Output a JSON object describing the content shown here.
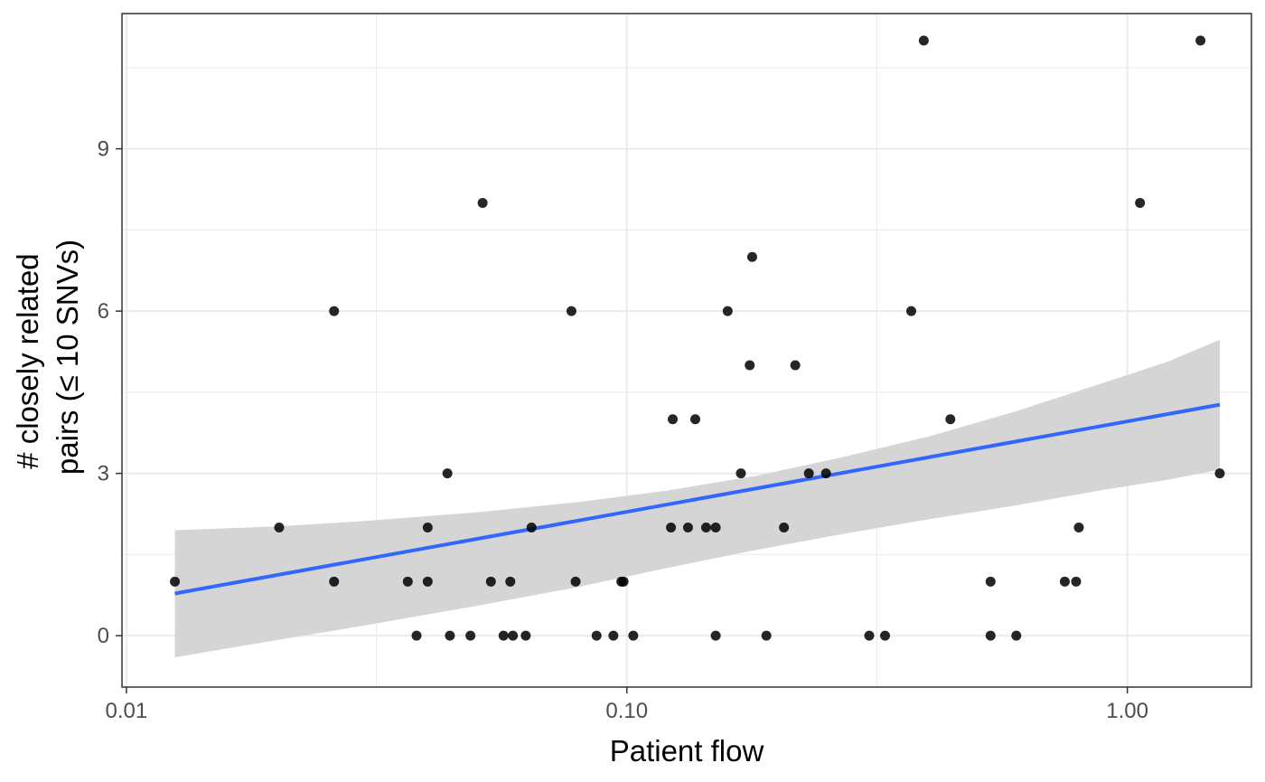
{
  "chart_data": {
    "type": "scatter",
    "xlabel": "Patient flow",
    "ylabel_lines": [
      "# closely related",
      "pairs (≤ 10 SNVs)"
    ],
    "x_scale": "log10",
    "xlim": [
      0.0098,
      1.77
    ],
    "ylim": [
      -0.95,
      11.5
    ],
    "x_ticks": [
      {
        "value": 0.01,
        "label": "0.01"
      },
      {
        "value": 0.1,
        "label": "0.10"
      },
      {
        "value": 1.0,
        "label": "1.00"
      }
    ],
    "x_minor_ticks": [
      0.0316,
      0.316
    ],
    "y_ticks": [
      {
        "value": 0,
        "label": "0"
      },
      {
        "value": 3,
        "label": "3"
      },
      {
        "value": 6,
        "label": "6"
      },
      {
        "value": 9,
        "label": "9"
      }
    ],
    "y_minor_ticks": [
      1.5,
      4.5,
      7.5,
      10.5
    ],
    "grid": true,
    "points": [
      {
        "x": 0.0125,
        "y": 1
      },
      {
        "x": 0.0202,
        "y": 2
      },
      {
        "x": 0.026,
        "y": 6
      },
      {
        "x": 0.026,
        "y": 1
      },
      {
        "x": 0.0365,
        "y": 1
      },
      {
        "x": 0.038,
        "y": 0
      },
      {
        "x": 0.04,
        "y": 2
      },
      {
        "x": 0.04,
        "y": 1
      },
      {
        "x": 0.0438,
        "y": 3
      },
      {
        "x": 0.0443,
        "y": 0
      },
      {
        "x": 0.0487,
        "y": 0
      },
      {
        "x": 0.0515,
        "y": 8
      },
      {
        "x": 0.0535,
        "y": 1
      },
      {
        "x": 0.0567,
        "y": 0
      },
      {
        "x": 0.0585,
        "y": 1
      },
      {
        "x": 0.0592,
        "y": 0
      },
      {
        "x": 0.0628,
        "y": 0
      },
      {
        "x": 0.0645,
        "y": 2
      },
      {
        "x": 0.0775,
        "y": 6
      },
      {
        "x": 0.079,
        "y": 1
      },
      {
        "x": 0.087,
        "y": 0
      },
      {
        "x": 0.094,
        "y": 0
      },
      {
        "x": 0.0975,
        "y": 1
      },
      {
        "x": 0.0985,
        "y": 1
      },
      {
        "x": 0.103,
        "y": 0
      },
      {
        "x": 0.1225,
        "y": 2
      },
      {
        "x": 0.1235,
        "y": 4
      },
      {
        "x": 0.1325,
        "y": 2
      },
      {
        "x": 0.137,
        "y": 4
      },
      {
        "x": 0.144,
        "y": 2
      },
      {
        "x": 0.1505,
        "y": 2
      },
      {
        "x": 0.1505,
        "y": 0
      },
      {
        "x": 0.159,
        "y": 6
      },
      {
        "x": 0.169,
        "y": 3
      },
      {
        "x": 0.176,
        "y": 5
      },
      {
        "x": 0.178,
        "y": 7
      },
      {
        "x": 0.19,
        "y": 0
      },
      {
        "x": 0.206,
        "y": 2
      },
      {
        "x": 0.217,
        "y": 5
      },
      {
        "x": 0.231,
        "y": 3
      },
      {
        "x": 0.25,
        "y": 3
      },
      {
        "x": 0.305,
        "y": 0
      },
      {
        "x": 0.328,
        "y": 0
      },
      {
        "x": 0.37,
        "y": 6
      },
      {
        "x": 0.392,
        "y": 11
      },
      {
        "x": 0.443,
        "y": 4
      },
      {
        "x": 0.533,
        "y": 1
      },
      {
        "x": 0.533,
        "y": 0
      },
      {
        "x": 0.6,
        "y": 0
      },
      {
        "x": 0.75,
        "y": 1
      },
      {
        "x": 0.79,
        "y": 1
      },
      {
        "x": 0.8,
        "y": 2
      },
      {
        "x": 1.06,
        "y": 8
      },
      {
        "x": 1.4,
        "y": 11
      },
      {
        "x": 1.53,
        "y": 3
      }
    ],
    "fit_line": {
      "x0": 0.0125,
      "x1": 1.53,
      "y0": 0.78,
      "y1": 4.27,
      "color": "#3366ff"
    },
    "confidence_band": {
      "x": [
        0.0125,
        0.02,
        0.03,
        0.05,
        0.08,
        0.12,
        0.18,
        0.27,
        0.4,
        0.6,
        0.9,
        1.2,
        1.53
      ],
      "upper": [
        1.95,
        2.02,
        2.12,
        2.28,
        2.47,
        2.68,
        2.95,
        3.3,
        3.68,
        4.15,
        4.68,
        5.06,
        5.47
      ],
      "lower": [
        -0.4,
        -0.08,
        0.19,
        0.55,
        0.9,
        1.25,
        1.58,
        1.88,
        2.15,
        2.41,
        2.7,
        2.88,
        3.07
      ],
      "color": "#d3d3d3"
    },
    "point_color": "#000000"
  }
}
